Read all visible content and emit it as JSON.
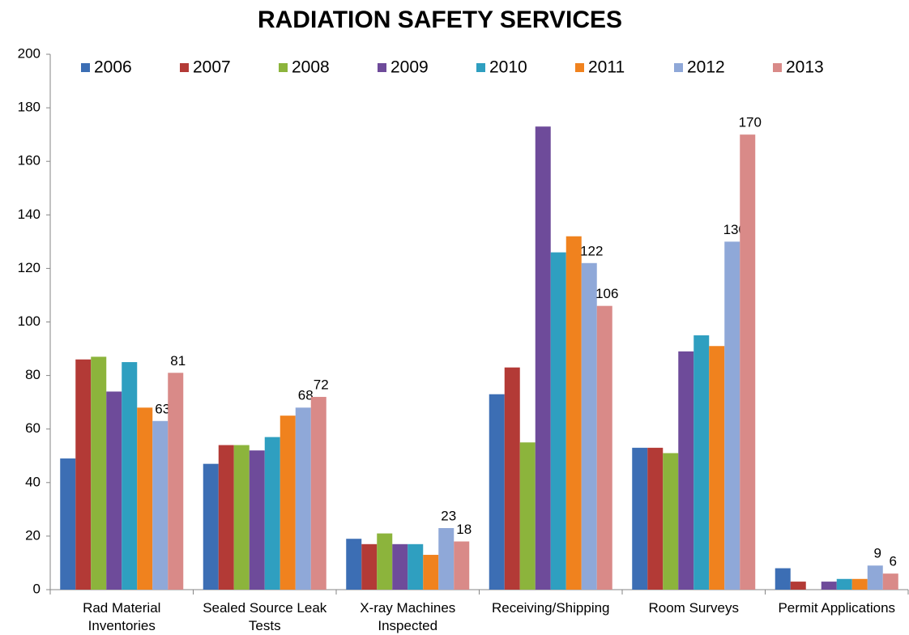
{
  "chart_data": {
    "type": "bar",
    "title": "RADIATION SAFETY SERVICES",
    "categories": [
      "Rad Material Inventories",
      "Sealed Source Leak Tests",
      "X-ray Machines Inspected",
      "Receiving/Shipping",
      "Room Surveys",
      "Permit Applications"
    ],
    "series": [
      {
        "name": "2006",
        "color": "#3c6eb4",
        "values": [
          49,
          47,
          19,
          73,
          53,
          8
        ]
      },
      {
        "name": "2007",
        "color": "#b33a36",
        "values": [
          86,
          54,
          17,
          83,
          53,
          3
        ]
      },
      {
        "name": "2008",
        "color": "#8cb43c",
        "values": [
          87,
          54,
          21,
          55,
          51,
          0
        ]
      },
      {
        "name": "2009",
        "color": "#6e4b9a",
        "values": [
          74,
          52,
          17,
          173,
          89,
          3
        ]
      },
      {
        "name": "2010",
        "color": "#2f9fc0",
        "values": [
          85,
          57,
          17,
          126,
          95,
          4
        ]
      },
      {
        "name": "2011",
        "color": "#f0821e",
        "values": [
          68,
          65,
          13,
          132,
          91,
          4
        ]
      },
      {
        "name": "2012",
        "color": "#8fa8d8",
        "values": [
          63,
          68,
          23,
          122,
          130,
          9
        ],
        "data_labels": true
      },
      {
        "name": "2013",
        "color": "#d98a88",
        "values": [
          81,
          72,
          18,
          106,
          170,
          6
        ],
        "data_labels": true
      }
    ],
    "ylim": [
      0,
      200
    ],
    "yticks": [
      0,
      20,
      40,
      60,
      80,
      100,
      120,
      140,
      160,
      180,
      200
    ],
    "grid": false,
    "legend": "top"
  }
}
